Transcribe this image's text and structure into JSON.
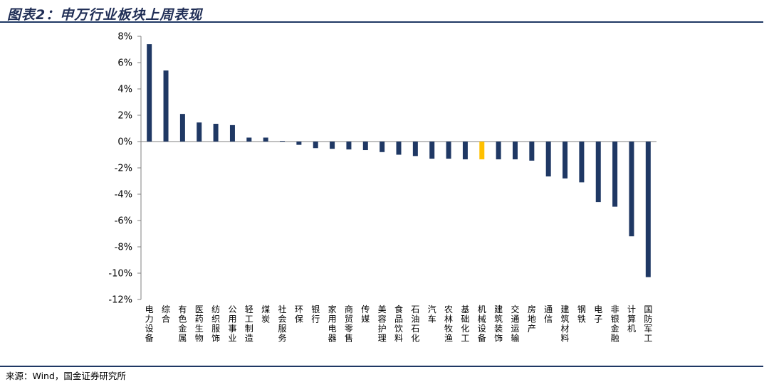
{
  "figure_title": "图表2：申万行业板块上周表现",
  "source_text": "来源：Wind，国金证券研究所",
  "colors": {
    "bar": "#1f3864",
    "highlight": "#ffc000",
    "axis": "#808080",
    "rule": "#1f3864"
  },
  "chart_data": {
    "type": "bar",
    "title": "",
    "xlabel": "",
    "ylabel": "",
    "ylim": [
      -12,
      8
    ],
    "yticks": [
      8,
      6,
      4,
      2,
      0,
      -2,
      -4,
      -6,
      -8,
      -10,
      -12
    ],
    "ytick_labels": [
      "8%",
      "6%",
      "4%",
      "2%",
      "0%",
      "-2%",
      "-4%",
      "-6%",
      "-8%",
      "-10%",
      "-12%"
    ],
    "highlight_category": "机械设备",
    "categories": [
      "电力设备",
      "综合",
      "有色金属",
      "医药生物",
      "纺织服饰",
      "公用事业",
      "轻工制造",
      "煤炭",
      "社会服务",
      "环保",
      "银行",
      "家用电器",
      "商贸零售",
      "传媒",
      "美容护理",
      "食品饮料",
      "石油石化",
      "汽车",
      "农林牧渔",
      "基础化工",
      "机械设备",
      "建筑装饰",
      "交通运输",
      "房地产",
      "通信",
      "建筑材料",
      "钢铁",
      "电子",
      "非银金融",
      "计算机",
      "国防军工"
    ],
    "values": [
      7.4,
      5.4,
      2.1,
      1.45,
      1.35,
      1.25,
      0.3,
      0.3,
      0.05,
      -0.25,
      -0.5,
      -0.55,
      -0.6,
      -0.65,
      -0.8,
      -1.0,
      -1.1,
      -1.3,
      -1.3,
      -1.35,
      -1.35,
      -1.35,
      -1.35,
      -1.45,
      -2.65,
      -2.8,
      -3.1,
      -4.6,
      -4.95,
      -7.2,
      -10.3
    ]
  }
}
